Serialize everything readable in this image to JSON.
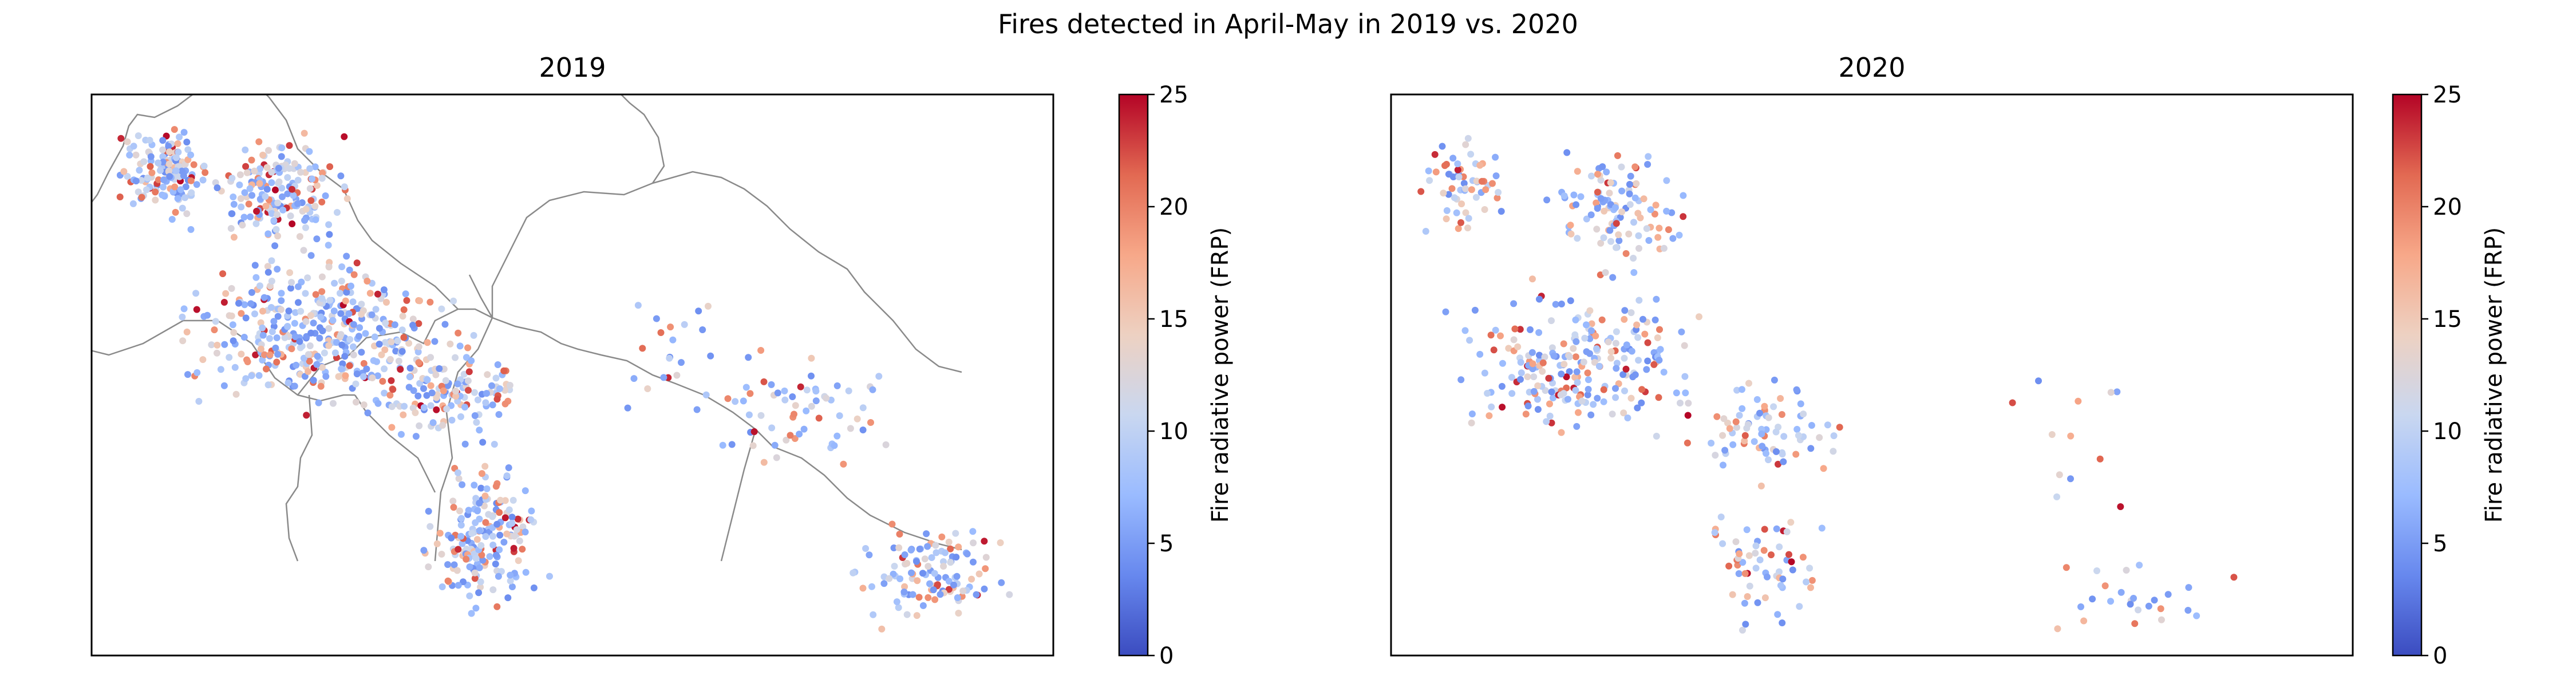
{
  "figure": {
    "suptitle": "Fires detected in April-May in 2019 vs. 2020"
  },
  "panels": [
    {
      "title": "2019"
    },
    {
      "title": "2020"
    }
  ],
  "colorbar": {
    "label": "Fire radiative power (FRP)",
    "ticks": [
      "0",
      "5",
      "10",
      "15",
      "20",
      "25"
    ],
    "range": [
      0,
      25
    ],
    "colors": [
      "#3b4cc0",
      "#6788ee",
      "#9abbff",
      "#c9d7f0",
      "#edd1c2",
      "#f7a889",
      "#e26952",
      "#b40426"
    ]
  },
  "colors": {
    "border": "#8a8a8a",
    "frame": "#000000"
  }
}
